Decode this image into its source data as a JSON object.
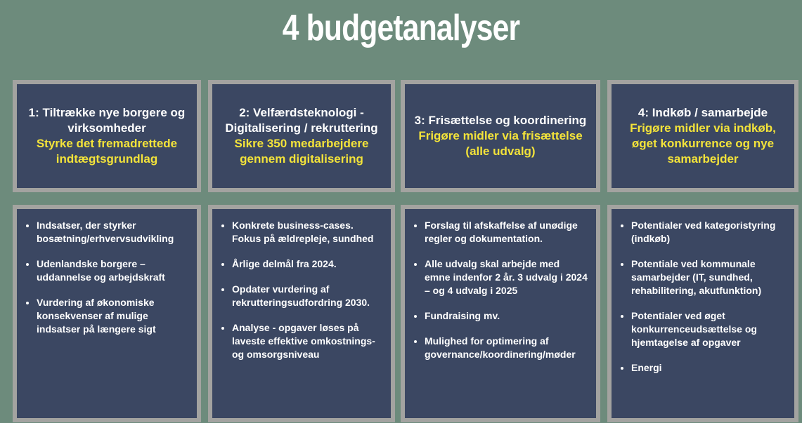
{
  "title": "4 budgetanalyser",
  "columns": [
    {
      "heading": "1: Tiltrække nye borgere og virksomheder",
      "subheading": "Styrke det fremadrettede indtægtsgrundlag",
      "bullets": [
        "Indsatser, der styrker bosætning/erhvervsudvikling",
        "Udenlandske borgere – uddannelse og arbejdskraft",
        "Vurdering af økonomiske konsekvenser af mulige indsatser på længere sigt"
      ]
    },
    {
      "heading": "2: Velfærdsteknologi - Digitalisering / rekruttering",
      "subheading": "Sikre 350 medarbejdere gennem digitalisering",
      "bullets": [
        "Konkrete business-cases. Fokus på ældrepleje, sundhed",
        "Årlige delmål fra 2024.",
        "Opdater vurdering af rekrutteringsudfordring 2030.",
        "Analyse - opgaver løses på laveste effektive omkostnings- og omsorgsniveau"
      ]
    },
    {
      "heading": "3: Frisættelse og koordinering",
      "subheading": "Frigøre midler via frisættelse (alle udvalg)",
      "bullets": [
        "Forslag til afskaffelse af unødige regler og dokumentation.",
        "Alle udvalg skal arbejde med emne indenfor 2 år. 3 udvalg i 2024 – og 4 udvalg i 2025",
        "Fundraising mv.",
        "Mulighed for optimering af governance/koordinering/møder"
      ]
    },
    {
      "heading": "4: Indkøb / samarbejde",
      "subheading": "Frigøre midler via indkøb, øget konkurrence og nye samarbejder",
      "bullets": [
        "Potentialer ved kategoristyring (indkøb)",
        "Potentiale ved kommunale samarbejder (IT, sundhed, rehabilitering, akutfunktion)",
        "Potentialer ved øget konkurrenceudsættelse og hjemtagelse af opgaver",
        "Energi"
      ]
    }
  ]
}
